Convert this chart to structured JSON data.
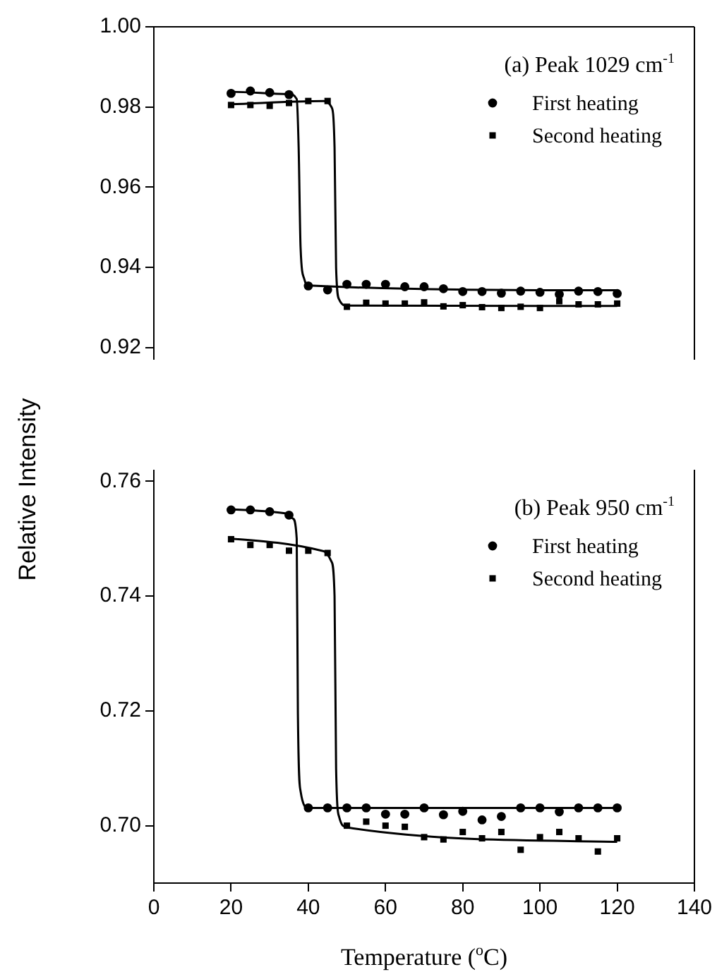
{
  "chart_data": [
    {
      "type": "scatter",
      "annotations": [
        "(a) Peak 1029 cm$^{-1}$"
      ],
      "ylabel": "Relative Intensity",
      "xlim": [
        0,
        140
      ],
      "ylim": [
        0.917,
        1.0
      ],
      "yticks": [
        0.92,
        0.94,
        0.96,
        0.98,
        {
          "value": 1,
          "label": "1.00"
        }
      ],
      "tick_labels": "y",
      "legend": "top right",
      "series": [
        {
          "name": "First heating",
          "type": "scatter",
          "marker": "circle",
          "color": "#000000",
          "x": [
            20,
            25,
            30,
            35,
            40,
            45,
            50,
            55,
            60,
            65,
            70,
            75,
            80,
            85,
            90,
            95,
            100,
            105,
            110,
            115,
            120
          ],
          "values": [
            0.9834,
            0.984,
            0.9836,
            0.9831,
            0.9354,
            0.9344,
            0.9358,
            0.9358,
            0.9358,
            0.9352,
            0.9352,
            0.9347,
            0.934,
            0.934,
            0.9336,
            0.9341,
            0.9338,
            0.9333,
            0.9341,
            0.934,
            0.9335
          ]
        },
        {
          "name": "Second heating",
          "type": "scatter",
          "marker": "square",
          "color": "#000000",
          "x": [
            20,
            25,
            30,
            35,
            40,
            45,
            50,
            55,
            60,
            65,
            70,
            75,
            80,
            85,
            90,
            95,
            100,
            105,
            110,
            115,
            120
          ],
          "values": [
            0.9805,
            0.9805,
            0.9803,
            0.981,
            0.9815,
            0.9815,
            0.9302,
            0.9312,
            0.931,
            0.931,
            0.9313,
            0.9303,
            0.9306,
            0.9301,
            0.9299,
            0.9302,
            0.9299,
            0.9316,
            0.9308,
            0.9308,
            0.931
          ]
        },
        {
          "type": "line",
          "color": "#000000",
          "x": [
            20,
            35,
            37,
            37.5,
            38,
            39,
            40,
            120
          ],
          "values": [
            0.9838,
            0.9832,
            0.982,
            0.97,
            0.945,
            0.937,
            0.9355,
            0.9343
          ]
        },
        {
          "type": "line",
          "color": "#000000",
          "x": [
            20,
            44,
            46,
            46.8,
            47.2,
            48,
            50,
            120
          ],
          "values": [
            0.9807,
            0.9815,
            0.98,
            0.97,
            0.94,
            0.932,
            0.9305,
            0.9304
          ]
        }
      ]
    },
    {
      "type": "scatter",
      "annotations": [
        "(b) Peak 950 cm$^{-1}$"
      ],
      "xlabel": "Temperature ($^{o}$C)",
      "xlim": [
        0,
        140
      ],
      "xticks": [
        0,
        20,
        40,
        60,
        80,
        100,
        120,
        140
      ],
      "ylim": [
        0.69,
        0.762
      ],
      "yticks": [
        {
          "value": 0.7,
          "label": "0.70"
        },
        0.72,
        0.74,
        0.76
      ],
      "legend": "top right",
      "series": [
        {
          "name": "First heating",
          "type": "scatter",
          "marker": "circle",
          "color": "#000000",
          "x": [
            20,
            25,
            30,
            35,
            40,
            45,
            50,
            55,
            60,
            65,
            70,
            75,
            80,
            85,
            90,
            95,
            100,
            105,
            110,
            115,
            120
          ],
          "values": [
            0.755,
            0.755,
            0.7547,
            0.7541,
            0.7031,
            0.7031,
            0.7031,
            0.7031,
            0.702,
            0.702,
            0.7031,
            0.7019,
            0.7025,
            0.701,
            0.7016,
            0.7031,
            0.7031,
            0.7024,
            0.7031,
            0.7031,
            0.7031
          ]
        },
        {
          "name": "Second heating",
          "type": "scatter",
          "marker": "square",
          "color": "#000000",
          "x": [
            20,
            25,
            30,
            35,
            40,
            45,
            50,
            55,
            60,
            65,
            70,
            75,
            80,
            85,
            90,
            95,
            100,
            105,
            110,
            115,
            120
          ],
          "values": [
            0.7499,
            0.7489,
            0.7489,
            0.7479,
            0.7479,
            0.7475,
            0.7,
            0.7007,
            0.7,
            0.6998,
            0.698,
            0.6976,
            0.6989,
            0.6978,
            0.6989,
            0.6958,
            0.698,
            0.6989,
            0.6978,
            0.6955,
            0.6978
          ]
        },
        {
          "type": "line",
          "color": "#000000",
          "x": [
            20,
            34,
            36,
            37,
            37.3,
            38,
            40,
            120
          ],
          "values": [
            0.7551,
            0.7544,
            0.7535,
            0.75,
            0.72,
            0.706,
            0.7031,
            0.7031
          ]
        },
        {
          "type": "line",
          "color": "#000000",
          "x": [
            20,
            44,
            46,
            46.8,
            47.2,
            48,
            50,
            120
          ],
          "values": [
            0.75,
            0.7478,
            0.746,
            0.74,
            0.71,
            0.7015,
            0.6997,
            0.6972
          ]
        }
      ]
    }
  ]
}
